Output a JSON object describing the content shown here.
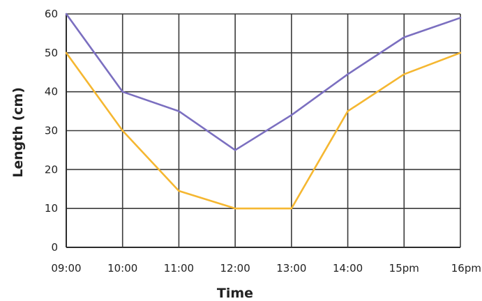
{
  "chart_data": {
    "type": "line",
    "title": "",
    "xlabel": "Time",
    "ylabel": "Length (cm)",
    "categories": [
      "09:00",
      "10:00",
      "11:00",
      "12:00",
      "13:00",
      "14:00",
      "15pm",
      "16pm"
    ],
    "ylim": [
      0,
      60
    ],
    "yticks": [
      0,
      10,
      20,
      30,
      40,
      50,
      60
    ],
    "grid": true,
    "legend": "none",
    "series": [
      {
        "color": "#7b6fc0",
        "values": [
          60,
          40,
          35,
          25,
          34,
          44.5,
          54,
          59
        ]
      },
      {
        "color": "#f5b731",
        "values": [
          50,
          30,
          14.5,
          10,
          10,
          35,
          44.5,
          50
        ]
      }
    ]
  }
}
